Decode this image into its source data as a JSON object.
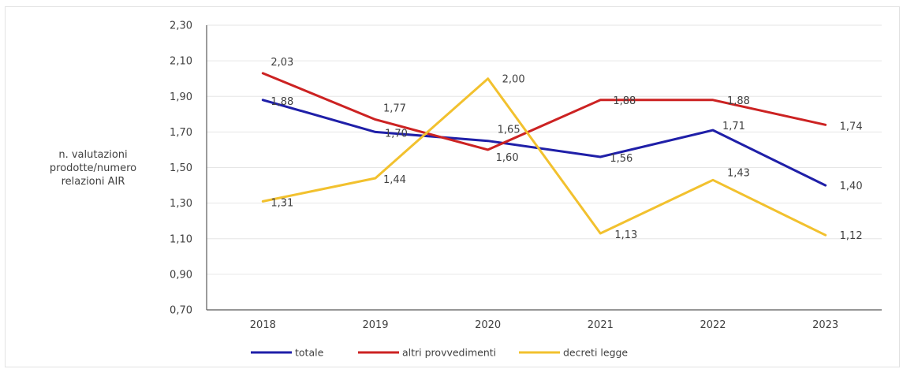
{
  "chart_data": {
    "type": "line",
    "categories": [
      "2018",
      "2019",
      "2020",
      "2021",
      "2022",
      "2023"
    ],
    "ylabel_lines": [
      "n. valutazioni",
      "prodotte/numero",
      "relazioni AIR"
    ],
    "ylim": [
      0.7,
      2.3
    ],
    "yticks": [
      "0,70",
      "0,90",
      "1,10",
      "1,30",
      "1,50",
      "1,70",
      "1,90",
      "2,10",
      "2,30"
    ],
    "grid": true,
    "legend_position": "bottom",
    "series": [
      {
        "name": "totale",
        "color": "#1f1fa8",
        "values": [
          1.88,
          1.7,
          1.65,
          1.56,
          1.71,
          1.4
        ],
        "labels": [
          "1,88",
          "1,70",
          "1,65",
          "1,56",
          "1,71",
          "1,40"
        ]
      },
      {
        "name": "altri provvedimenti",
        "color": "#cc2222",
        "values": [
          2.03,
          1.77,
          1.6,
          1.88,
          1.88,
          1.74
        ],
        "labels": [
          "2,03",
          "1,77",
          "1,60",
          "1,88",
          "1,88",
          "1,74"
        ]
      },
      {
        "name": "decreti legge",
        "color": "#f2c12e",
        "values": [
          1.31,
          1.44,
          2.0,
          1.13,
          1.43,
          1.12
        ],
        "labels": [
          "1,31",
          "1,44",
          "2,00",
          "1,13",
          "1,43",
          "1,12"
        ]
      }
    ]
  }
}
